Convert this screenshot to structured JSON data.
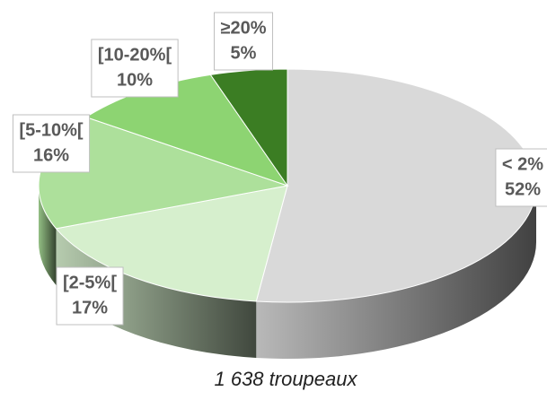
{
  "chart_data": {
    "type": "pie",
    "title": "1 638 troupeaux",
    "categories": [
      "< 2%",
      "[2-5%[",
      "[5-10%[",
      "[10-20%[",
      "≥20%"
    ],
    "values": [
      52,
      17,
      16,
      10,
      5
    ],
    "value_labels": [
      "52%",
      "17%",
      "16%",
      "10%",
      "5%"
    ],
    "colors": [
      "#d9d9d9",
      "#d6efcd",
      "#ade09b",
      "#8dd472",
      "#3b7d23"
    ]
  }
}
